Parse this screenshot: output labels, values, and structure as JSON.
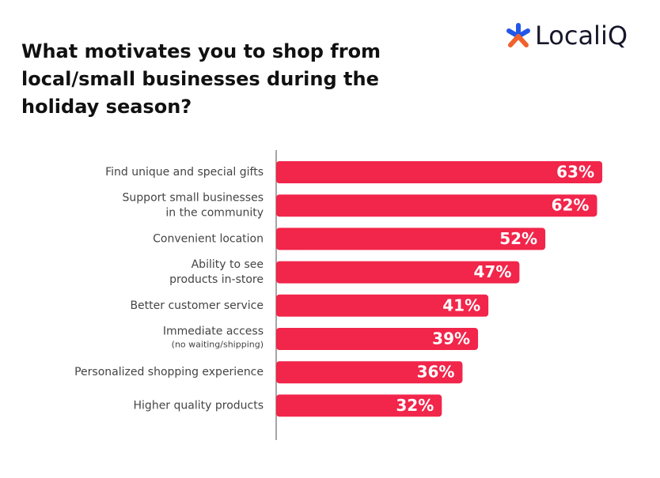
{
  "logo": "LocaliQ",
  "chart_data": {
    "type": "bar",
    "orientation": "horizontal",
    "title": [
      "What motivates you to shop from",
      "local/small businesses during the",
      "holiday season?"
    ],
    "categories": [
      [
        "Find unique and special gifts"
      ],
      [
        "Support small businesses",
        "in the community"
      ],
      [
        "Convenient location"
      ],
      [
        "Ability to see",
        "products in-store"
      ],
      [
        "Better customer service"
      ],
      [
        "Immediate access",
        "(no waiting/shipping)"
      ],
      [
        "Personalized shopping experience"
      ],
      [
        "Higher quality products"
      ]
    ],
    "values": [
      63,
      62,
      52,
      47,
      41,
      39,
      36,
      32
    ],
    "value_labels": [
      "63%",
      "62%",
      "52%",
      "47%",
      "41%",
      "39%",
      "36%",
      "32%"
    ],
    "color": "#f2254a"
  }
}
